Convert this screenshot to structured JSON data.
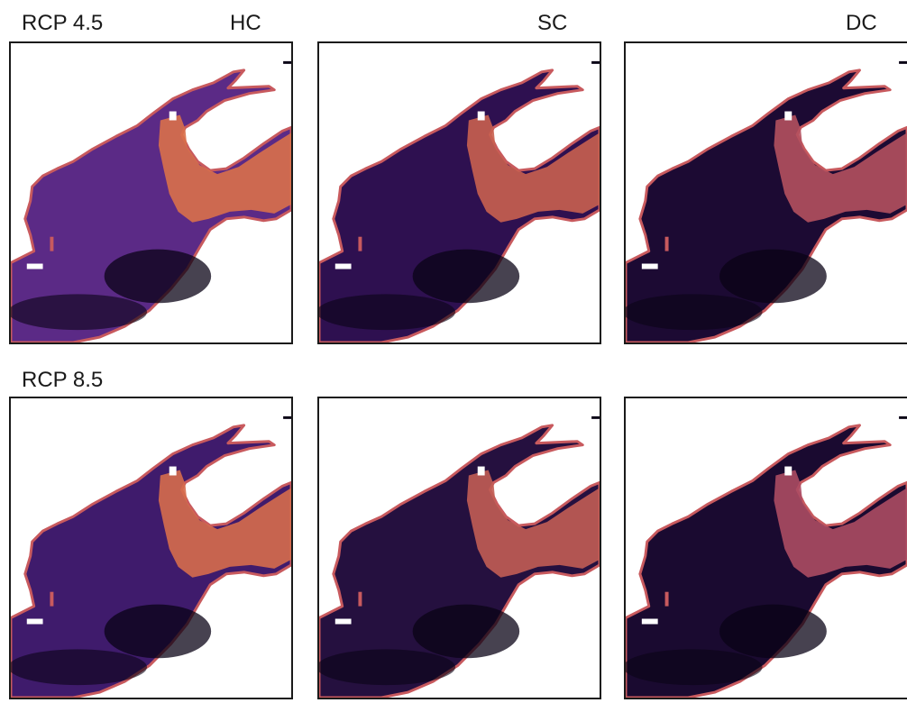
{
  "row_labels": [
    "RCP 4.5",
    "RCP 8.5"
  ],
  "column_labels": [
    "HC",
    "SC",
    "DC"
  ],
  "colors": {
    "background": "#ffffff",
    "frame": "#1a1a1a",
    "colormap": [
      "#0a0316",
      "#2a0a45",
      "#4f1a78",
      "#8c2f8a",
      "#c85a5e",
      "#f29d3e",
      "#ffffff"
    ]
  },
  "panels": [
    {
      "row": "RCP 4.5",
      "column": "HC",
      "basin_tone": "#5b2a86",
      "shelf_tone": "#d9704a"
    },
    {
      "row": "RCP 4.5",
      "column": "SC",
      "basin_tone": "#2e1050",
      "shelf_tone": "#c9604f"
    },
    {
      "row": "RCP 4.5",
      "column": "DC",
      "basin_tone": "#1c0a33",
      "shelf_tone": "#b4505e"
    },
    {
      "row": "RCP 8.5",
      "column": "HC",
      "basin_tone": "#3f1b6c",
      "shelf_tone": "#d66d4c"
    },
    {
      "row": "RCP 8.5",
      "column": "SC",
      "basin_tone": "#25103f",
      "shelf_tone": "#c25d54"
    },
    {
      "row": "RCP 8.5",
      "column": "DC",
      "basin_tone": "#1a0a30",
      "shelf_tone": "#ac4b63"
    }
  ]
}
